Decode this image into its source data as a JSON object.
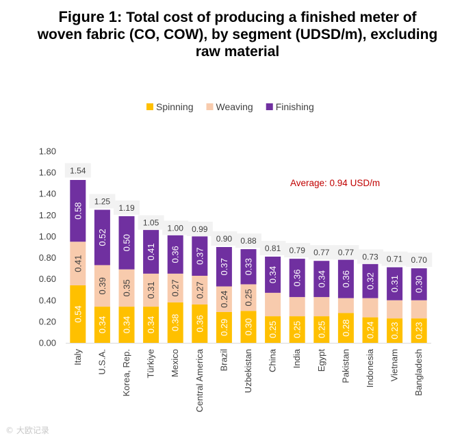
{
  "title": {
    "lead": "Figure 1:",
    "line1": "Total cost of producing a finished meter of",
    "line2": "woven fabric (CO, COW), by segment (UDSD/m), excluding",
    "line3": "raw material"
  },
  "chart_data": {
    "type": "bar",
    "stacked": true,
    "title": "Figure 1: Total cost of producing a finished meter of woven fabric (CO, COW), by segment (UDSD/m), excluding raw material",
    "categories": [
      "Italy",
      "U.S.A.",
      "Korea, Rep.",
      "Türkiye",
      "Mexico",
      "Central America",
      "Brazil",
      "Uzbekistan",
      "China",
      "India",
      "Egypt",
      "Pakistan",
      "Indonesia",
      "Vietnam",
      "Bangladesh"
    ],
    "series": [
      {
        "name": "Spinning",
        "color": "#FFC000",
        "values": [
          0.54,
          0.34,
          0.34,
          0.34,
          0.38,
          0.36,
          0.29,
          0.3,
          0.25,
          0.25,
          0.25,
          0.28,
          0.24,
          0.23,
          0.23
        ]
      },
      {
        "name": "Weaving",
        "color": "#F8CBAD",
        "values": [
          0.41,
          0.39,
          0.35,
          0.31,
          0.27,
          0.27,
          0.24,
          0.25,
          0.22,
          0.18,
          0.18,
          0.14,
          0.18,
          0.17,
          0.17
        ]
      },
      {
        "name": "Finishing",
        "color": "#7030A0",
        "values": [
          0.58,
          0.52,
          0.5,
          0.41,
          0.36,
          0.37,
          0.37,
          0.33,
          0.34,
          0.36,
          0.34,
          0.36,
          0.32,
          0.31,
          0.3
        ]
      }
    ],
    "show_labels": {
      "Spinning": true,
      "Weaving": [
        true,
        true,
        true,
        true,
        true,
        true,
        true,
        true,
        false,
        false,
        false,
        false,
        false,
        false,
        false
      ],
      "Finishing": true
    },
    "label_text": {
      "Spinning": [
        "0.54",
        "0.34",
        "0.34",
        "0.34",
        "0.38",
        "0.36",
        "0.29",
        "0.30",
        "0.25",
        "0.25",
        "0.25",
        "0.28",
        "0.24",
        "0.23",
        "0.23"
      ],
      "Weaving": [
        "0.41",
        "0.39",
        "0.35",
        "0.31",
        "0.27",
        "0.27",
        "0.24",
        "0.25",
        "",
        "",
        "",
        "",
        "",
        "",
        ""
      ],
      "Finishing": [
        "0.58",
        "0.52",
        "0.50",
        "0.41",
        "0.36",
        "0.37",
        "0.37",
        "0.33",
        "0.34",
        "0.36",
        "0.34",
        "0.36",
        "0.32",
        "0.31",
        "0.30"
      ]
    },
    "totals": [
      "1.54",
      "1.25",
      "1.19",
      "1.05",
      "1.00",
      "0.99",
      "0.90",
      "0.88",
      "0.81",
      "0.79",
      "0.77",
      "0.77",
      "0.73",
      "0.71",
      "0.70"
    ],
    "total_values": [
      1.54,
      1.25,
      1.19,
      1.05,
      1.0,
      0.99,
      0.9,
      0.88,
      0.81,
      0.79,
      0.77,
      0.77,
      0.73,
      0.71,
      0.7
    ],
    "ylim": [
      0,
      1.8
    ],
    "yticks": [
      "0.00",
      "0.20",
      "0.40",
      "0.60",
      "0.80",
      "1.00",
      "1.20",
      "1.40",
      "1.60",
      "1.80"
    ],
    "ytick_values": [
      0,
      0.2,
      0.4,
      0.6,
      0.8,
      1.0,
      1.2,
      1.4,
      1.6,
      1.8
    ],
    "xlabel": "",
    "ylabel": "",
    "grid": false,
    "legend_position": "top",
    "annotation": {
      "text": "Average: 0.94 USD/m",
      "color": "#C00000"
    }
  },
  "watermark": "© 大欧记录"
}
